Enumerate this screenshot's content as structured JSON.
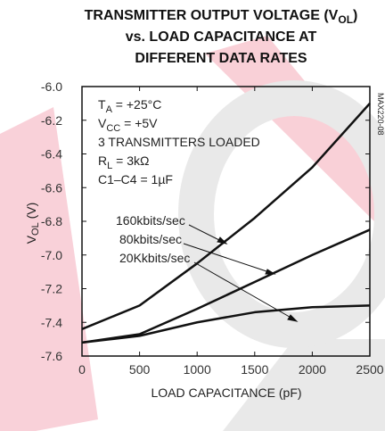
{
  "chart_data": {
    "type": "line",
    "title": [
      "TRANSMITTER OUTPUT VOLTAGE (V",
      "OL",
      ")",
      "vs. LOAD CAPACITANCE AT",
      "DIFFERENT DATA RATES"
    ],
    "x_label": "LOAD CAPACITANCE (pF)",
    "y_label": [
      "V",
      "OL",
      " (V)"
    ],
    "side_note": "MAX220-08",
    "annotations": [
      [
        "T",
        "A",
        " = +25°C"
      ],
      [
        "V",
        "CC",
        " = +5V"
      ],
      [
        "3 TRANSMITTERS LOADED",
        "",
        ""
      ],
      [
        "R",
        "L",
        " = 3kΩ"
      ],
      [
        "C1–C4 = 1µF",
        "",
        ""
      ]
    ],
    "x": [
      0,
      500,
      1000,
      1500,
      2000,
      2500
    ],
    "series": [
      {
        "name": "160kbits/sec",
        "color": "#111111",
        "values": [
          -7.44,
          -7.3,
          -7.05,
          -6.78,
          -6.48,
          -6.1
        ]
      },
      {
        "name": "80kbits/sec",
        "color": "#111111",
        "values": [
          -7.52,
          -7.47,
          -7.32,
          -7.16,
          -7.0,
          -6.85
        ]
      },
      {
        "name": "20Kkbits/sec",
        "color": "#111111",
        "values": [
          -7.52,
          -7.48,
          -7.4,
          -7.34,
          -7.31,
          -7.3
        ]
      }
    ],
    "xlim": [
      0,
      2500
    ],
    "xticks": [
      0,
      500,
      1000,
      1500,
      2000,
      2500
    ],
    "ylim": [
      -7.6,
      -6.0
    ],
    "yticks": [
      {
        "value": -6.0,
        "label": "-6.0"
      },
      -6.2,
      -6.4,
      -6.6,
      -6.8,
      {
        "value": -7.0,
        "label": "-7.0"
      },
      -7.2,
      -7.4,
      -7.6
    ]
  }
}
